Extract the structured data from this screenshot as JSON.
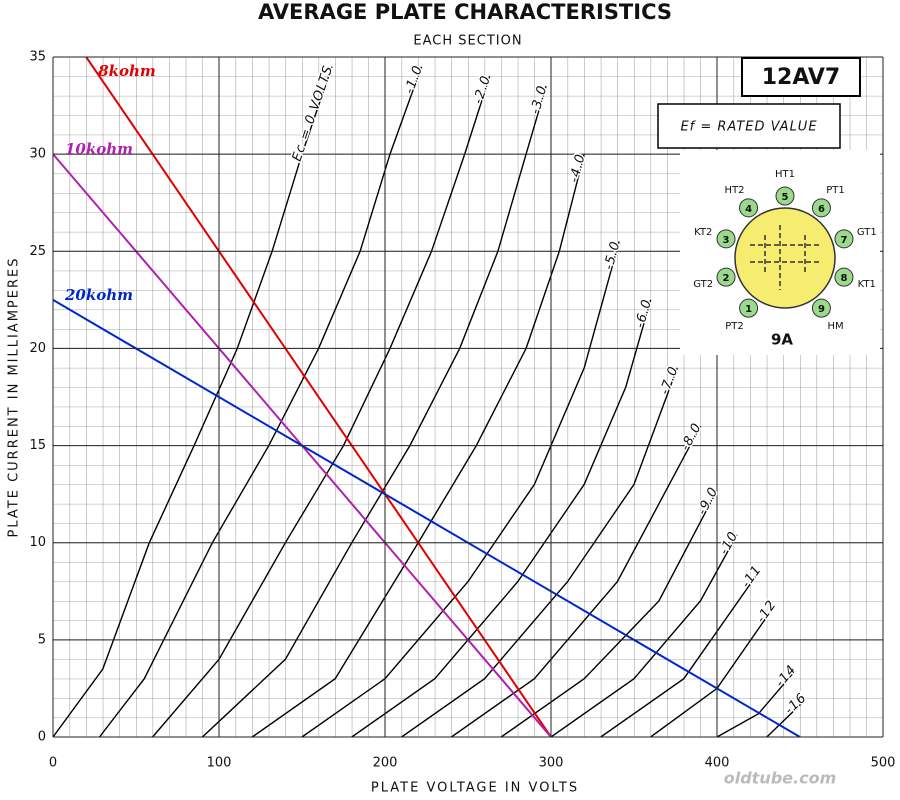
{
  "chart_data": {
    "type": "line",
    "title": "AVERAGE PLATE CHARACTERISTICS",
    "subtitle": "EACH SECTION",
    "x_label": "PLATE VOLTAGE IN VOLTS",
    "y_label": "PLATE CURRENT IN MILLIAMPERES",
    "xlim": [
      0,
      500
    ],
    "xticks": [
      0,
      100,
      200,
      300,
      400,
      500
    ],
    "ylim": [
      0,
      35
    ],
    "yticks": [
      0,
      5,
      10,
      15,
      20,
      25,
      30,
      35
    ],
    "grid": true,
    "series": [
      {
        "name": "Ec = 0 VOLTS",
        "color": "#000000",
        "x": [
          0,
          30,
          58,
          85,
          111,
          132,
          150,
          168
        ],
        "values": [
          0,
          3.5,
          10,
          15,
          20,
          25,
          30,
          34.5
        ]
      },
      {
        "name": "-1.0",
        "color": "#000000",
        "x": [
          28,
          55,
          96,
          130,
          160,
          185,
          203,
          222
        ],
        "values": [
          0,
          3,
          10,
          15,
          20,
          25,
          30,
          34.5
        ]
      },
      {
        "name": "-2.0",
        "color": "#000000",
        "x": [
          60,
          100,
          140,
          175,
          203,
          228,
          248,
          263
        ],
        "values": [
          0,
          4,
          10,
          15,
          20,
          25,
          30,
          34
        ]
      },
      {
        "name": "-3.0",
        "color": "#000000",
        "x": [
          90,
          140,
          180,
          215,
          245,
          268,
          285,
          297
        ],
        "values": [
          0,
          4,
          10,
          15,
          20,
          25,
          30,
          33.5
        ]
      },
      {
        "name": "-4.0",
        "color": "#000000",
        "x": [
          120,
          170,
          220,
          255,
          285,
          305,
          320
        ],
        "values": [
          0,
          3,
          10,
          15,
          20,
          25,
          30
        ]
      },
      {
        "name": "-5.0",
        "color": "#000000",
        "x": [
          150,
          200,
          250,
          290,
          320,
          341
        ],
        "values": [
          0,
          3,
          8,
          13,
          19,
          25.5
        ]
      },
      {
        "name": "-6.0",
        "color": "#000000",
        "x": [
          180,
          230,
          280,
          320,
          345,
          360
        ],
        "values": [
          0,
          3,
          8,
          13,
          18,
          22.5
        ]
      },
      {
        "name": "-7.0",
        "color": "#000000",
        "x": [
          210,
          260,
          310,
          350,
          376
        ],
        "values": [
          0,
          3,
          8,
          13,
          19
        ]
      },
      {
        "name": "-8.0",
        "color": "#000000",
        "x": [
          240,
          290,
          340,
          390
        ],
        "values": [
          0,
          3,
          8,
          16
        ]
      },
      {
        "name": "-9.0",
        "color": "#000000",
        "x": [
          270,
          320,
          365,
          400
        ],
        "values": [
          0,
          3,
          7,
          12.7
        ]
      },
      {
        "name": "-10",
        "color": "#000000",
        "x": [
          300,
          350,
          390,
          412
        ],
        "values": [
          0,
          3,
          7,
          10.4
        ]
      },
      {
        "name": "-11",
        "color": "#000000",
        "x": [
          330,
          380,
          426
        ],
        "values": [
          0,
          3,
          8.6
        ]
      },
      {
        "name": "-12",
        "color": "#000000",
        "x": [
          360,
          400,
          435
        ],
        "values": [
          0,
          2.5,
          6.8
        ]
      },
      {
        "name": "-14",
        "color": "#000000",
        "x": [
          400,
          425,
          447
        ],
        "values": [
          0,
          1.2,
          3.4
        ]
      },
      {
        "name": "-16",
        "color": "#000000",
        "x": [
          430,
          453
        ],
        "values": [
          0,
          1.9
        ]
      },
      {
        "name": "8kohm",
        "color": "#e00000",
        "x": [
          20,
          300
        ],
        "values": [
          35,
          0
        ]
      },
      {
        "name": "10kohm",
        "color": "#b020b0",
        "x": [
          0,
          300
        ],
        "values": [
          30,
          0
        ]
      },
      {
        "name": "20kohm",
        "color": "#0028c8",
        "x": [
          0,
          450
        ],
        "values": [
          22.5,
          0
        ]
      }
    ],
    "annotations": {
      "tube": "12AV7",
      "filament": "Ef = RATED VALUE",
      "base": "9A",
      "watermark": "oldtube.com"
    },
    "base_pins": [
      {
        "number": "1",
        "label": "PT2"
      },
      {
        "number": "2",
        "label": "GT2"
      },
      {
        "number": "3",
        "label": "KT2"
      },
      {
        "number": "4",
        "label": "HT2"
      },
      {
        "number": "5",
        "label": "HT1"
      },
      {
        "number": "6",
        "label": "PT1"
      },
      {
        "number": "7",
        "label": "GT1"
      },
      {
        "number": "8",
        "label": "KT1"
      },
      {
        "number": "9",
        "label": "HM"
      }
    ]
  }
}
